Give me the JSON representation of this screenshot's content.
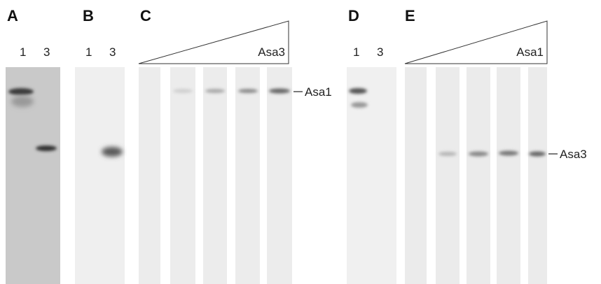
{
  "panels": {
    "A": {
      "label": "A",
      "lanes": [
        "1",
        "3"
      ]
    },
    "B": {
      "label": "B",
      "lanes": [
        "1",
        "3"
      ]
    },
    "C": {
      "label": "C",
      "titration": "Asa3",
      "band": "Asa1"
    },
    "D": {
      "label": "D",
      "lanes": [
        "1",
        "3"
      ]
    },
    "E": {
      "label": "E",
      "titration": "Asa1",
      "band": "Asa3"
    }
  }
}
